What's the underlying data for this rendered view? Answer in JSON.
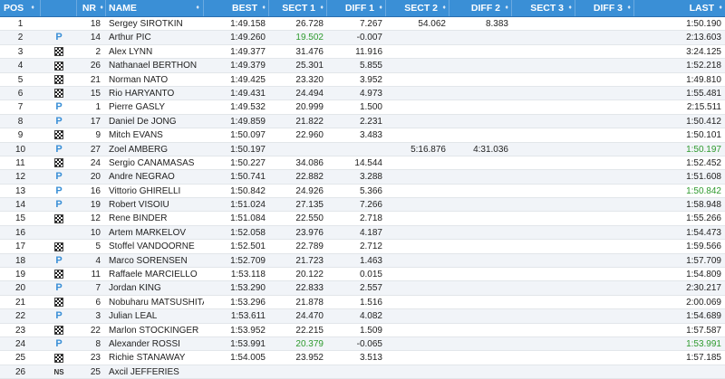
{
  "header": {
    "pos": "POS",
    "nr": "NR",
    "name": "NAME",
    "best": "BEST",
    "sect1": "SECT 1",
    "diff1": "DIFF 1",
    "sect2": "SECT 2",
    "diff2": "DIFF 2",
    "sect3": "SECT 3",
    "diff3": "DIFF 3",
    "last": "LAST",
    "sort_glyph": "♦"
  },
  "colors": {
    "header_bg": "#3a8fd6",
    "personal_best": "#2e9a2e",
    "pit": "#3a8fd6"
  },
  "rows": [
    {
      "pos": "1",
      "tyre": "",
      "nr": "18",
      "name": "Sergey SIROTKIN",
      "best": "1:49.158",
      "s1": "26.728",
      "d1": "7.267",
      "s2": "54.062",
      "d2": "8.383",
      "s3": "",
      "d3": "",
      "last": "1:50.190",
      "s1_green": false,
      "last_green": false
    },
    {
      "pos": "2",
      "tyre": "pit",
      "nr": "14",
      "name": "Arthur PIC",
      "best": "1:49.260",
      "s1": "19.502",
      "d1": "-0.007",
      "s2": "",
      "d2": "",
      "s3": "",
      "d3": "",
      "last": "2:13.603",
      "s1_green": true,
      "last_green": false
    },
    {
      "pos": "3",
      "tyre": "flag",
      "nr": "2",
      "name": "Alex LYNN",
      "best": "1:49.377",
      "s1": "31.476",
      "d1": "11.916",
      "s2": "",
      "d2": "",
      "s3": "",
      "d3": "",
      "last": "3:24.125",
      "s1_green": false,
      "last_green": false
    },
    {
      "pos": "4",
      "tyre": "flag",
      "nr": "26",
      "name": "Nathanael BERTHON",
      "best": "1:49.379",
      "s1": "25.301",
      "d1": "5.855",
      "s2": "",
      "d2": "",
      "s3": "",
      "d3": "",
      "last": "1:52.218",
      "s1_green": false,
      "last_green": false
    },
    {
      "pos": "5",
      "tyre": "flag",
      "nr": "21",
      "name": "Norman NATO",
      "best": "1:49.425",
      "s1": "23.320",
      "d1": "3.952",
      "s2": "",
      "d2": "",
      "s3": "",
      "d3": "",
      "last": "1:49.810",
      "s1_green": false,
      "last_green": false
    },
    {
      "pos": "6",
      "tyre": "flag",
      "nr": "15",
      "name": "Rio HARYANTO",
      "best": "1:49.431",
      "s1": "24.494",
      "d1": "4.973",
      "s2": "",
      "d2": "",
      "s3": "",
      "d3": "",
      "last": "1:55.481",
      "s1_green": false,
      "last_green": false
    },
    {
      "pos": "7",
      "tyre": "pit",
      "nr": "1",
      "name": "Pierre GASLY",
      "best": "1:49.532",
      "s1": "20.999",
      "d1": "1.500",
      "s2": "",
      "d2": "",
      "s3": "",
      "d3": "",
      "last": "2:15.511",
      "s1_green": false,
      "last_green": false
    },
    {
      "pos": "8",
      "tyre": "pit",
      "nr": "17",
      "name": "Daniel De JONG",
      "best": "1:49.859",
      "s1": "21.822",
      "d1": "2.231",
      "s2": "",
      "d2": "",
      "s3": "",
      "d3": "",
      "last": "1:50.412",
      "s1_green": false,
      "last_green": false
    },
    {
      "pos": "9",
      "tyre": "flag",
      "nr": "9",
      "name": "Mitch EVANS",
      "best": "1:50.097",
      "s1": "22.960",
      "d1": "3.483",
      "s2": "",
      "d2": "",
      "s3": "",
      "d3": "",
      "last": "1:50.101",
      "s1_green": false,
      "last_green": false
    },
    {
      "pos": "10",
      "tyre": "pit",
      "nr": "27",
      "name": "Zoel AMBERG",
      "best": "1:50.197",
      "s1": "",
      "d1": "",
      "s2": "5:16.876",
      "d2": "4:31.036",
      "s3": "",
      "d3": "",
      "last": "1:50.197",
      "s1_green": false,
      "last_green": true
    },
    {
      "pos": "11",
      "tyre": "flag",
      "nr": "24",
      "name": "Sergio CANAMASAS",
      "best": "1:50.227",
      "s1": "34.086",
      "d1": "14.544",
      "s2": "",
      "d2": "",
      "s3": "",
      "d3": "",
      "last": "1:52.452",
      "s1_green": false,
      "last_green": false
    },
    {
      "pos": "12",
      "tyre": "pit",
      "nr": "20",
      "name": "Andre NEGRAO",
      "best": "1:50.741",
      "s1": "22.882",
      "d1": "3.288",
      "s2": "",
      "d2": "",
      "s3": "",
      "d3": "",
      "last": "1:51.608",
      "s1_green": false,
      "last_green": false
    },
    {
      "pos": "13",
      "tyre": "pit",
      "nr": "16",
      "name": "Vittorio GHIRELLI",
      "best": "1:50.842",
      "s1": "24.926",
      "d1": "5.366",
      "s2": "",
      "d2": "",
      "s3": "",
      "d3": "",
      "last": "1:50.842",
      "s1_green": false,
      "last_green": true
    },
    {
      "pos": "14",
      "tyre": "pit",
      "nr": "19",
      "name": "Robert VISOIU",
      "best": "1:51.024",
      "s1": "27.135",
      "d1": "7.266",
      "s2": "",
      "d2": "",
      "s3": "",
      "d3": "",
      "last": "1:58.948",
      "s1_green": false,
      "last_green": false
    },
    {
      "pos": "15",
      "tyre": "flag",
      "nr": "12",
      "name": "Rene BINDER",
      "best": "1:51.084",
      "s1": "22.550",
      "d1": "2.718",
      "s2": "",
      "d2": "",
      "s3": "",
      "d3": "",
      "last": "1:55.266",
      "s1_green": false,
      "last_green": false
    },
    {
      "pos": "16",
      "tyre": "",
      "nr": "10",
      "name": "Artem MARKELOV",
      "best": "1:52.058",
      "s1": "23.976",
      "d1": "4.187",
      "s2": "",
      "d2": "",
      "s3": "",
      "d3": "",
      "last": "1:54.473",
      "s1_green": false,
      "last_green": false
    },
    {
      "pos": "17",
      "tyre": "flag",
      "nr": "5",
      "name": "Stoffel VANDOORNE",
      "best": "1:52.501",
      "s1": "22.789",
      "d1": "2.712",
      "s2": "",
      "d2": "",
      "s3": "",
      "d3": "",
      "last": "1:59.566",
      "s1_green": false,
      "last_green": false
    },
    {
      "pos": "18",
      "tyre": "pit",
      "nr": "4",
      "name": "Marco SORENSEN",
      "best": "1:52.709",
      "s1": "21.723",
      "d1": "1.463",
      "s2": "",
      "d2": "",
      "s3": "",
      "d3": "",
      "last": "1:57.709",
      "s1_green": false,
      "last_green": false
    },
    {
      "pos": "19",
      "tyre": "flag",
      "nr": "11",
      "name": "Raffaele MARCIELLO",
      "best": "1:53.118",
      "s1": "20.122",
      "d1": "0.015",
      "s2": "",
      "d2": "",
      "s3": "",
      "d3": "",
      "last": "1:54.809",
      "s1_green": false,
      "last_green": false
    },
    {
      "pos": "20",
      "tyre": "pit",
      "nr": "7",
      "name": "Jordan KING",
      "best": "1:53.290",
      "s1": "22.833",
      "d1": "2.557",
      "s2": "",
      "d2": "",
      "s3": "",
      "d3": "",
      "last": "2:30.217",
      "s1_green": false,
      "last_green": false
    },
    {
      "pos": "21",
      "tyre": "flag",
      "nr": "6",
      "name": "Nobuharu MATSUSHITA",
      "best": "1:53.296",
      "s1": "21.878",
      "d1": "1.516",
      "s2": "",
      "d2": "",
      "s3": "",
      "d3": "",
      "last": "2:00.069",
      "s1_green": false,
      "last_green": false
    },
    {
      "pos": "22",
      "tyre": "pit",
      "nr": "3",
      "name": "Julian LEAL",
      "best": "1:53.611",
      "s1": "24.470",
      "d1": "4.082",
      "s2": "",
      "d2": "",
      "s3": "",
      "d3": "",
      "last": "1:54.689",
      "s1_green": false,
      "last_green": false
    },
    {
      "pos": "23",
      "tyre": "flag",
      "nr": "22",
      "name": "Marlon STOCKINGER",
      "best": "1:53.952",
      "s1": "22.215",
      "d1": "1.509",
      "s2": "",
      "d2": "",
      "s3": "",
      "d3": "",
      "last": "1:57.587",
      "s1_green": false,
      "last_green": false
    },
    {
      "pos": "24",
      "tyre": "pit",
      "nr": "8",
      "name": "Alexander ROSSI",
      "best": "1:53.991",
      "s1": "20.379",
      "d1": "-0.065",
      "s2": "",
      "d2": "",
      "s3": "",
      "d3": "",
      "last": "1:53.991",
      "s1_green": true,
      "last_green": true
    },
    {
      "pos": "25",
      "tyre": "flag",
      "nr": "23",
      "name": "Richie STANAWAY",
      "best": "1:54.005",
      "s1": "23.952",
      "d1": "3.513",
      "s2": "",
      "d2": "",
      "s3": "",
      "d3": "",
      "last": "1:57.185",
      "s1_green": false,
      "last_green": false
    },
    {
      "pos": "26",
      "tyre": "ns",
      "nr": "25",
      "name": "Axcil JEFFERIES",
      "best": "",
      "s1": "",
      "d1": "",
      "s2": "",
      "d2": "",
      "s3": "",
      "d3": "",
      "last": "",
      "s1_green": false,
      "last_green": false
    }
  ],
  "pit_glyph": "P",
  "ns_glyph": "NS"
}
